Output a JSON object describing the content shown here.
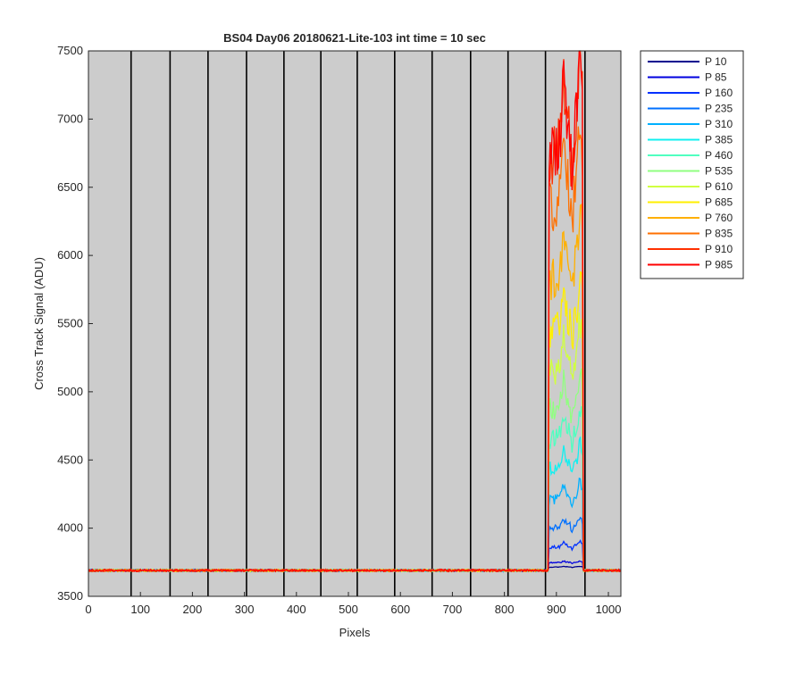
{
  "chart_data": {
    "type": "line",
    "title": "BS04 Day06 20180621-Lite-103 int time = 10 sec",
    "xlabel": "Pixels",
    "ylabel": "Cross Track Signal (ADU)",
    "xlim": [
      0,
      1024
    ],
    "ylim": [
      3500,
      7500
    ],
    "xticks": [
      0,
      100,
      200,
      300,
      400,
      500,
      600,
      700,
      800,
      900,
      1000
    ],
    "yticks": [
      3500,
      4000,
      4500,
      5000,
      5500,
      6000,
      6500,
      7000,
      7500
    ],
    "grid": false,
    "background": "#cccccc",
    "legend_position": "outside-top-right",
    "vertical_lines_x": [
      82,
      157,
      230,
      304,
      376,
      447,
      517,
      589,
      661,
      735,
      807,
      879,
      955
    ],
    "baseline": 3690,
    "illuminated_region": [
      885,
      950
    ],
    "series": [
      {
        "name": "P 10",
        "color": "#00008f",
        "region_peak": 3720
      },
      {
        "name": "P 85",
        "color": "#0000df",
        "region_peak": 3760
      },
      {
        "name": "P 160",
        "color": "#0030ff",
        "region_peak": 3900
      },
      {
        "name": "P 235",
        "color": "#0070ff",
        "region_peak": 4080
      },
      {
        "name": "P 310",
        "color": "#00b0ff",
        "region_peak": 4330
      },
      {
        "name": "P 385",
        "color": "#10f0f0",
        "region_peak": 4620
      },
      {
        "name": "P 460",
        "color": "#50ffc0",
        "region_peak": 4880
      },
      {
        "name": "P 535",
        "color": "#90ff80",
        "region_peak": 5150
      },
      {
        "name": "P 610",
        "color": "#d0ff40",
        "region_peak": 5480
      },
      {
        "name": "P 685",
        "color": "#ffef00",
        "region_peak": 5830
      },
      {
        "name": "P 760",
        "color": "#ffb000",
        "region_peak": 6330
      },
      {
        "name": "P 835",
        "color": "#ff7000",
        "region_peak": 6980
      },
      {
        "name": "P 910",
        "color": "#ff3000",
        "region_peak": 7450
      },
      {
        "name": "P 985",
        "color": "#ff0000",
        "region_peak": 7500
      }
    ]
  }
}
